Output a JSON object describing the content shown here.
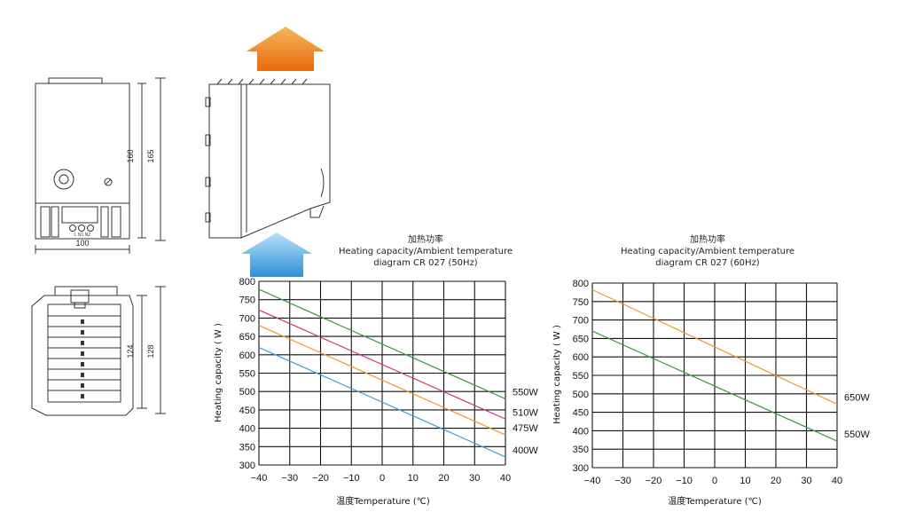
{
  "drawings": {
    "front_view": {
      "width_label": "100",
      "height_labels": [
        "160",
        "165"
      ],
      "terminal_label": "L N1 N2"
    },
    "bottom_view": {
      "height_labels": [
        "124",
        "128"
      ]
    },
    "airflow": {
      "out_color": "#ee8a1c",
      "in_color": "#3ea6e0"
    }
  },
  "chart_data": [
    {
      "type": "line",
      "title_cn": "加热功率",
      "title": "Heating capacity/Ambient temperature",
      "subtitle": "diagram CR 027 (50Hz)",
      "xlabel": "温度Temperature (℃)",
      "ylabel": "Heating capacity ( W )",
      "xlim": [
        -40,
        40
      ],
      "ylim": [
        300,
        800
      ],
      "xticks": [
        "−40",
        "−30",
        "−20",
        "−10",
        "0",
        "10",
        "20",
        "30",
        "40"
      ],
      "yticks": [
        "300",
        "350",
        "400",
        "450",
        "500",
        "550",
        "600",
        "650",
        "700",
        "750",
        "800"
      ],
      "grid": true,
      "series": [
        {
          "name": "550W",
          "color": "#3a9a3a",
          "x": [
            -40,
            40
          ],
          "y": [
            778,
            480
          ]
        },
        {
          "name": "510W",
          "color": "#d6336c",
          "x": [
            -40,
            40
          ],
          "y": [
            722,
            425
          ]
        },
        {
          "name": "475W",
          "color": "#f0962a",
          "x": [
            -40,
            40
          ],
          "y": [
            680,
            382
          ]
        },
        {
          "name": "400W",
          "color": "#3d9fd6",
          "x": [
            -40,
            40
          ],
          "y": [
            620,
            322
          ]
        }
      ]
    },
    {
      "type": "line",
      "title_cn": "加热功率",
      "title": "Heating capacity/Ambient temperature",
      "subtitle": "diagram CR 027 (60Hz)",
      "xlabel": "温度Temperature (℃)",
      "ylabel": "Heating capacity ( W )",
      "xlim": [
        -40,
        40
      ],
      "ylim": [
        300,
        800
      ],
      "xticks": [
        "−40",
        "−30",
        "−20",
        "−10",
        "0",
        "10",
        "20",
        "30",
        "40"
      ],
      "yticks": [
        "300",
        "350",
        "400",
        "450",
        "500",
        "550",
        "600",
        "650",
        "700",
        "750",
        "800"
      ],
      "grid": true,
      "series": [
        {
          "name": "650W",
          "color": "#f0962a",
          "x": [
            -40,
            40
          ],
          "y": [
            782,
            472
          ]
        },
        {
          "name": "550W",
          "color": "#3a9a3a",
          "x": [
            -40,
            40
          ],
          "y": [
            670,
            372
          ]
        }
      ]
    }
  ]
}
